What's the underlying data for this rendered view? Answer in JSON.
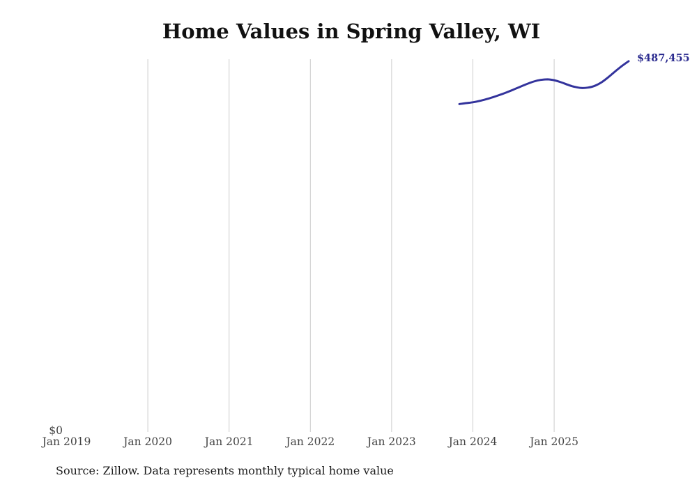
{
  "header": {
    "title": "Home Values in Spring Valley, WI"
  },
  "footer": {
    "source_note": "Source: Zillow. Data represents monthly typical home value"
  },
  "colors": {
    "background": "#ffffff",
    "line": "#33339c",
    "latest_value_label": "#2b2b8f",
    "gridline": "#cccccc",
    "axis_label": "#454545",
    "title": "#111111",
    "source_note": "#1c1c1c"
  },
  "chart_data": {
    "type": "line",
    "title": "Home Values in Spring Valley, WI",
    "xlabel": "",
    "ylabel": "",
    "x_tick_labels": [
      "Jan 2019",
      "Jan 2020",
      "Jan 2021",
      "Jan 2022",
      "Jan 2023",
      "Jan 2024",
      "Jan 2025"
    ],
    "y_tick_labels": [
      "$0"
    ],
    "ylim": [
      0,
      490000
    ],
    "grid": "vertical-gridlines-only-no-line-at-first-tick",
    "legend": "none",
    "latest_value_label": "$487,455",
    "series": [
      {
        "name": "Monthly typical home value",
        "points": [
          {
            "date": "2023-11",
            "value": 431000
          },
          {
            "date": "2023-12",
            "value": 432300
          },
          {
            "date": "2024-01",
            "value": 433400
          },
          {
            "date": "2024-02",
            "value": 435200
          },
          {
            "date": "2024-03",
            "value": 437500
          },
          {
            "date": "2024-04",
            "value": 440200
          },
          {
            "date": "2024-05",
            "value": 443200
          },
          {
            "date": "2024-06",
            "value": 446500
          },
          {
            "date": "2024-07",
            "value": 450100
          },
          {
            "date": "2024-08",
            "value": 453800
          },
          {
            "date": "2024-09",
            "value": 457500
          },
          {
            "date": "2024-10",
            "value": 460700
          },
          {
            "date": "2024-11",
            "value": 462800
          },
          {
            "date": "2024-12",
            "value": 463500
          },
          {
            "date": "2025-01",
            "value": 462400
          },
          {
            "date": "2025-02",
            "value": 459800
          },
          {
            "date": "2025-03",
            "value": 456500
          },
          {
            "date": "2025-04",
            "value": 453700
          },
          {
            "date": "2025-05",
            "value": 452200
          },
          {
            "date": "2025-06",
            "value": 452700
          },
          {
            "date": "2025-07",
            "value": 455000
          },
          {
            "date": "2025-08",
            "value": 459700
          },
          {
            "date": "2025-09",
            "value": 466400
          },
          {
            "date": "2025-10",
            "value": 473900
          },
          {
            "date": "2025-11",
            "value": 481100
          },
          {
            "date": "2025-12",
            "value": 487455
          }
        ]
      }
    ]
  }
}
